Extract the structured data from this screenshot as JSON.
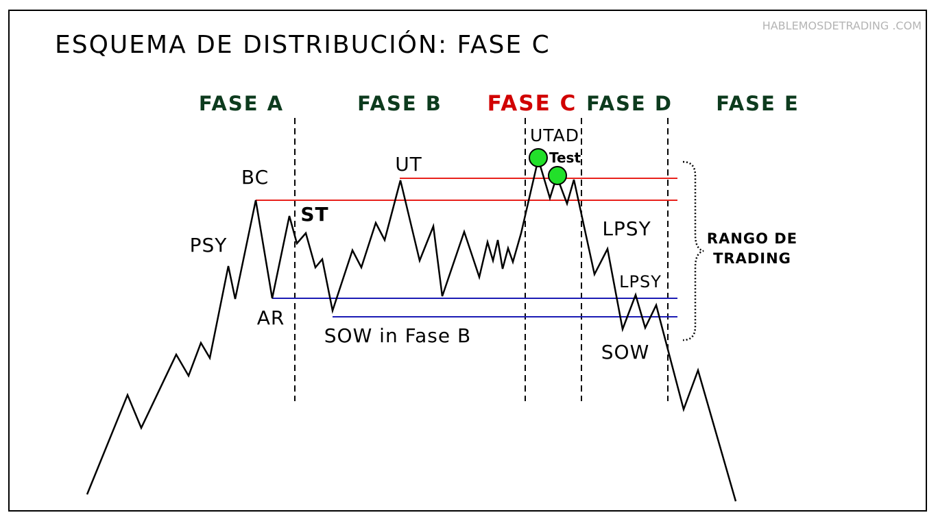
{
  "title": "ESQUEMA DE DISTRIBUCIÓN: FASE C",
  "watermark": "HABLEMOSDETRADING .COM",
  "phases": [
    {
      "label": "FASE A",
      "highlight": false
    },
    {
      "label": "FASE B",
      "highlight": false
    },
    {
      "label": "FASE C",
      "highlight": true
    },
    {
      "label": "FASE D",
      "highlight": false
    },
    {
      "label": "FASE E",
      "highlight": false
    }
  ],
  "events": {
    "psy": "PSY",
    "bc": "BC",
    "ar": "AR",
    "st": "ST",
    "ut": "UT",
    "sow_fase_b": "SOW in Fase B",
    "utad": "UTAD",
    "test": "Test",
    "lpsy_1": "LPSY",
    "lpsy_2": "LPSY",
    "sow": "SOW"
  },
  "range_label": [
    "RANGO DE",
    "TRADING"
  ],
  "colors": {
    "phase_label": "#0d3b1e",
    "phase_highlight": "#d10000",
    "resistance": "#e8201a",
    "support": "#1a1ab4",
    "marker": "#22e02a",
    "price": "#000000"
  }
}
